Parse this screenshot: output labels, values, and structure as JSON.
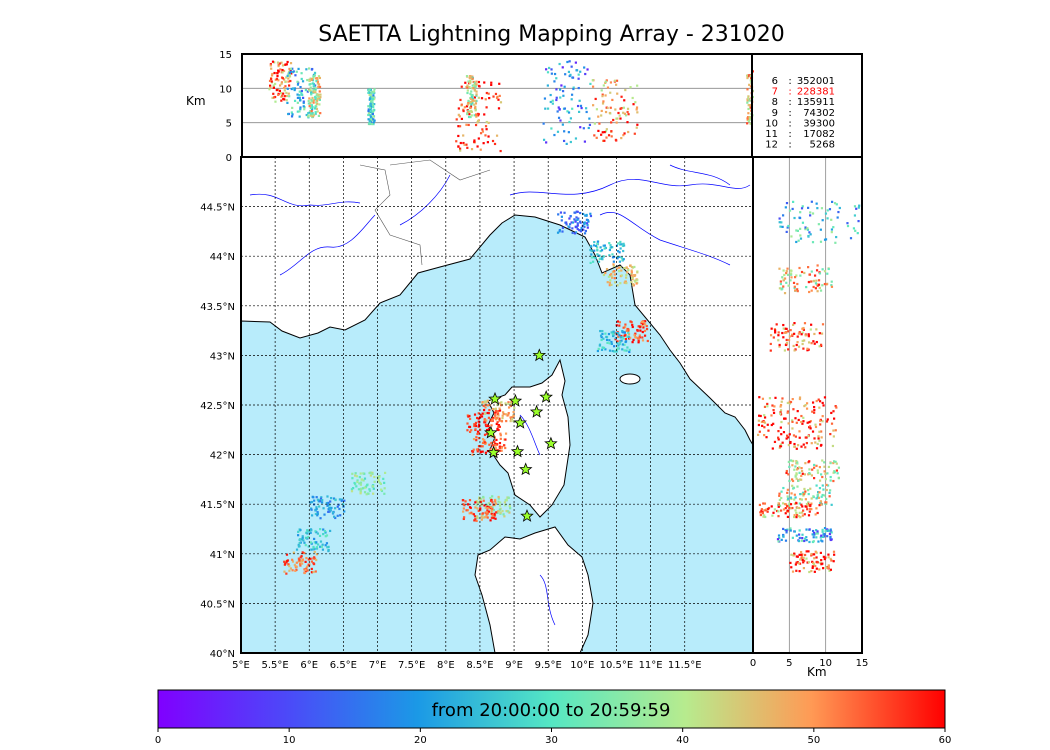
{
  "title": "SAETTA Lightning Mapping Array - 231020",
  "altitude_panel": {
    "ylabel": "Km",
    "yticks": [
      "0",
      "5",
      "10",
      "15"
    ],
    "ymax_km": 15
  },
  "side_panel": {
    "xlabel": "Km",
    "xticks": [
      "0",
      "5",
      "10",
      "15"
    ]
  },
  "map": {
    "lon_range": [
      5,
      12.5
    ],
    "lat_range": [
      40,
      45
    ],
    "lon_ticks": [
      "5°E",
      "5.5°E",
      "6°E",
      "6.5°E",
      "7°E",
      "7.5°E",
      "8°E",
      "8.5°E",
      "9°E",
      "9.5°E",
      "10°E",
      "10.5°E",
      "11°E",
      "11.5°E"
    ],
    "lat_ticks": [
      "40°N",
      "40.5°N",
      "41°N",
      "41.5°N",
      "42°N",
      "42.5°N",
      "43°N",
      "43.5°N",
      "44°N",
      "44.5°N"
    ],
    "sea_color": "#b8ecfb",
    "land_color": "#ffffff",
    "river_color": "#0000ff",
    "stations": [
      {
        "lon": 9.37,
        "lat": 43.0
      },
      {
        "lon": 8.72,
        "lat": 42.56
      },
      {
        "lon": 9.02,
        "lat": 42.54
      },
      {
        "lon": 9.47,
        "lat": 42.58
      },
      {
        "lon": 9.33,
        "lat": 42.43
      },
      {
        "lon": 9.09,
        "lat": 42.32
      },
      {
        "lon": 8.66,
        "lat": 42.22
      },
      {
        "lon": 9.54,
        "lat": 42.11
      },
      {
        "lon": 8.7,
        "lat": 42.02
      },
      {
        "lon": 9.05,
        "lat": 42.03
      },
      {
        "lon": 9.17,
        "lat": 41.85
      },
      {
        "lon": 9.19,
        "lat": 41.38
      }
    ]
  },
  "legend": [
    {
      "hour": "6",
      "count": "352001",
      "color": "#000000"
    },
    {
      "hour": "7",
      "count": "228381",
      "color": "#ff0000"
    },
    {
      "hour": "8",
      "count": "135911",
      "color": "#000000"
    },
    {
      "hour": "9",
      "count": "74302",
      "color": "#000000"
    },
    {
      "hour": "10",
      "count": "39300",
      "color": "#000000"
    },
    {
      "hour": "11",
      "count": "17082",
      "color": "#000000"
    },
    {
      "hour": "12",
      "count": "5268",
      "color": "#000000"
    }
  ],
  "colorbar": {
    "caption": "from 20:00:00 to 20:59:59",
    "ticks": [
      "0",
      "10",
      "20",
      "30",
      "40",
      "50",
      "60"
    ],
    "colormap": "rainbow",
    "range_minutes": [
      0,
      60
    ]
  },
  "chart_data": {
    "type": "scatter",
    "clusters": [
      {
        "lon": 8.55,
        "lat": 42.35,
        "minute": 58
      },
      {
        "lon": 8.75,
        "lat": 42.45,
        "minute": 48
      },
      {
        "lon": 8.62,
        "lat": 42.12,
        "minute": 55
      },
      {
        "lon": 8.68,
        "lat": 41.48,
        "minute": 40
      },
      {
        "lon": 8.48,
        "lat": 41.45,
        "minute": 55
      },
      {
        "lon": 9.87,
        "lat": 44.35,
        "minute": 15
      },
      {
        "lon": 10.35,
        "lat": 44.05,
        "minute": 25
      },
      {
        "lon": 10.55,
        "lat": 43.82,
        "minute": 45
      },
      {
        "lon": 10.7,
        "lat": 43.25,
        "minute": 55
      },
      {
        "lon": 10.45,
        "lat": 43.15,
        "minute": 25
      },
      {
        "lon": 6.25,
        "lat": 41.48,
        "minute": 20
      },
      {
        "lon": 5.85,
        "lat": 40.92,
        "minute": 52
      },
      {
        "lon": 6.05,
        "lat": 41.15,
        "minute": 25
      },
      {
        "lon": 6.85,
        "lat": 41.72,
        "minute": 35
      }
    ]
  }
}
